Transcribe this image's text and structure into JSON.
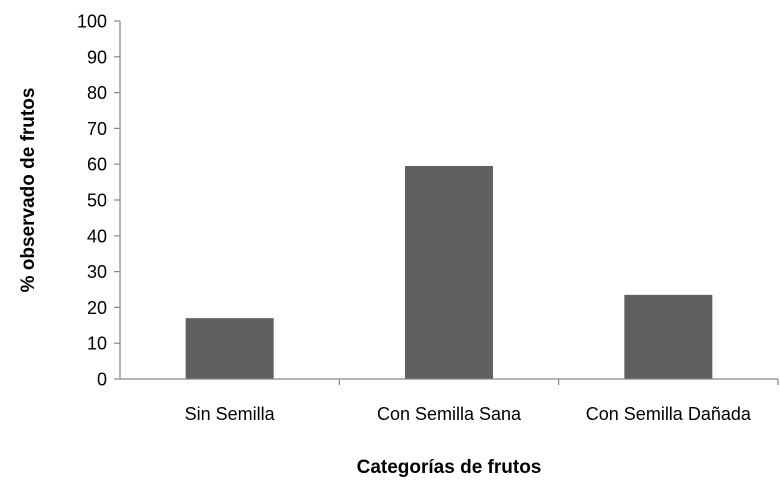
{
  "chart_data": {
    "type": "bar",
    "title": "",
    "xlabel": "Categorías de frutos",
    "ylabel": "% observado de frutos",
    "categories": [
      "Sin Semilla",
      "Con Semilla Sana",
      "Con Semilla Dañada"
    ],
    "values": [
      17,
      59.5,
      23.5
    ],
    "ylim": [
      0,
      100
    ],
    "yticks": [
      "0",
      "10",
      "20",
      "30",
      "40",
      "50",
      "60",
      "70",
      "80",
      "90",
      "100"
    ],
    "grid": false,
    "legend": "none",
    "bar_color": "#606060"
  }
}
